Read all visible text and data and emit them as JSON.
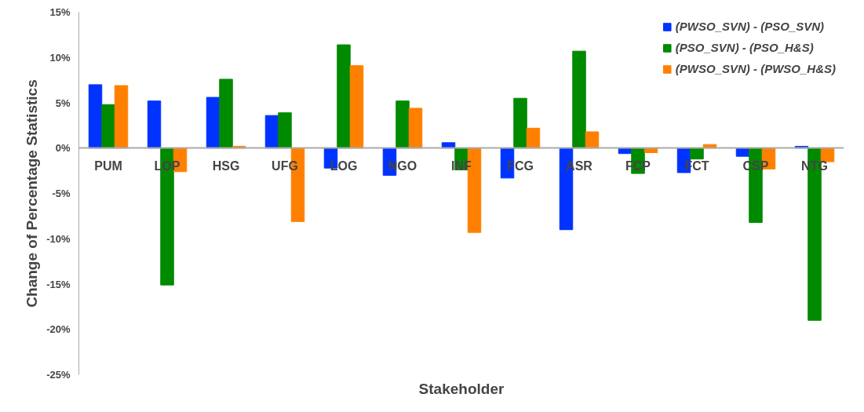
{
  "chart_data": {
    "type": "bar",
    "xlabel": "Stakeholder",
    "ylabel": "Change of Percentage Statistics",
    "categories": [
      "PUM",
      "LOP",
      "HSG",
      "UFG",
      "LOG",
      "NGO",
      "INF",
      "FCG",
      "ASR",
      "FCP",
      "FCT",
      "CSP",
      "NTG"
    ],
    "series": [
      {
        "name": "(PWSO_SVN) - (PSO_SVN)",
        "color": "#0033ff",
        "values": [
          7.0,
          5.2,
          5.6,
          3.6,
          -2.2,
          -3.0,
          0.6,
          -3.3,
          -9.0,
          -0.6,
          -2.7,
          -0.9,
          0.2
        ]
      },
      {
        "name": "(PSO_SVN) - (PSO_H&S)",
        "color": "#008a00",
        "values": [
          4.8,
          -15.1,
          7.6,
          3.9,
          11.4,
          5.2,
          -2.4,
          5.5,
          10.7,
          -2.8,
          -1.2,
          -8.2,
          -19.0
        ]
      },
      {
        "name": "(PWSO_SVN) - (PWSO_H&S)",
        "color": "#ff8000",
        "values": [
          6.9,
          -2.6,
          0.2,
          -8.1,
          9.1,
          4.4,
          -9.3,
          2.2,
          1.8,
          -0.5,
          0.4,
          -2.3,
          -1.5
        ]
      }
    ],
    "ylim": [
      -25,
      15
    ],
    "yticks": [
      {
        "value": -25,
        "label": "-25%"
      },
      {
        "value": -20,
        "label": "-20%"
      },
      {
        "value": -15,
        "label": "-15%"
      },
      {
        "value": -10,
        "label": "-10%"
      },
      {
        "value": -5,
        "label": "-5%"
      },
      {
        "value": 0,
        "label": "0%"
      },
      {
        "value": 5,
        "label": "5%"
      },
      {
        "value": 10,
        "label": "10%"
      },
      {
        "value": 15,
        "label": "15%"
      }
    ],
    "legend": "top right",
    "grid": false
  }
}
